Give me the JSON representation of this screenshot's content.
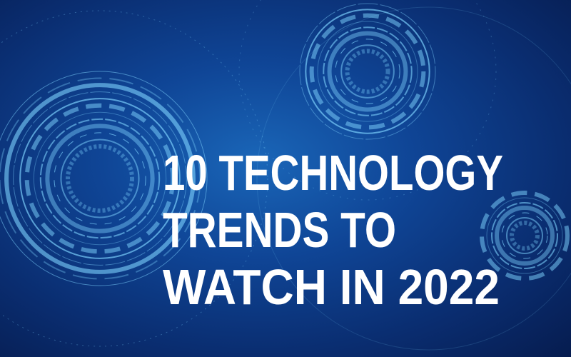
{
  "headline": {
    "line1": "10 TECHNOLOGY",
    "line2": "TRENDS TO",
    "line3": "WATCH IN 2022"
  },
  "colors": {
    "background": "#0f4596",
    "rings": "#7fd4ff",
    "text": "#ffffff"
  }
}
